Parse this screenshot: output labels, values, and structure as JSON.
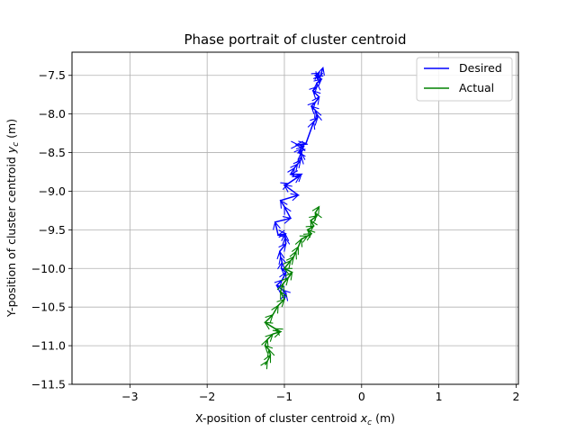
{
  "chart_data": {
    "type": "line",
    "title": "Phase portrait of cluster centroid",
    "xlabel": {
      "prefix": "X-position of cluster centroid ",
      "var": "x",
      "sub": "c",
      "suffix": " (m)"
    },
    "ylabel": {
      "prefix": "Y-position of cluster centroid ",
      "var": "y",
      "sub": "c",
      "suffix": " (m)"
    },
    "xlim": [
      -3.75,
      2.03
    ],
    "ylim": [
      -11.5,
      -7.2
    ],
    "xticks": [
      -3,
      -2,
      -1,
      0,
      1,
      2
    ],
    "xtick_labels": [
      "−3",
      "−2",
      "−1",
      "0",
      "1",
      "2"
    ],
    "yticks": [
      -7.5,
      -8.0,
      -8.5,
      -9.0,
      -9.5,
      -10.0,
      -10.5,
      -11.0,
      -11.5
    ],
    "ytick_labels": [
      "−7.5",
      "−8.0",
      "−8.5",
      "−9.0",
      "−9.5",
      "−10.0",
      "−10.5",
      "−11.0",
      "−11.5"
    ],
    "grid": true,
    "legend_position": "top-right",
    "series": [
      {
        "name": "Desired",
        "color": "#0000ff",
        "x": [
          -1.0,
          -0.98,
          -1.02,
          -1.1,
          -1.03,
          -0.98,
          -1.04,
          -1.03,
          -1.05,
          -1.06,
          -0.98,
          -0.99,
          -0.99,
          -0.98,
          -1.08,
          -1.12,
          -0.92,
          -1.0,
          -1.05,
          -0.82,
          -1.0,
          -0.95,
          -0.8,
          -0.78,
          -0.92,
          -0.87,
          -0.83,
          -0.79,
          -0.78,
          -0.78,
          -0.82,
          -0.78,
          -0.75,
          -0.8,
          -0.85,
          -0.82,
          -0.72,
          -0.62,
          -0.57,
          -0.58,
          -0.6,
          -0.65,
          -0.6,
          -0.55,
          -0.63,
          -0.58,
          -0.58,
          -0.52,
          -0.6,
          -0.55,
          -0.57,
          -0.53,
          -0.5
        ],
        "y": [
          -10.4,
          -10.32,
          -10.28,
          -10.22,
          -10.15,
          -10.05,
          -10.0,
          -9.92,
          -9.85,
          -9.78,
          -9.68,
          -9.6,
          -9.55,
          -9.55,
          -9.57,
          -9.4,
          -9.35,
          -9.2,
          -9.12,
          -9.05,
          -8.92,
          -8.9,
          -8.8,
          -8.78,
          -8.78,
          -8.7,
          -8.65,
          -8.6,
          -8.55,
          -8.5,
          -8.5,
          -8.45,
          -8.42,
          -8.4,
          -8.4,
          -8.4,
          -8.38,
          -8.1,
          -8.05,
          -8.0,
          -7.95,
          -7.9,
          -7.85,
          -7.78,
          -7.7,
          -7.65,
          -7.6,
          -7.55,
          -7.5,
          -7.47,
          -7.55,
          -7.5,
          -7.4
        ]
      },
      {
        "name": "Actual",
        "color": "#008000",
        "x": [
          -1.25,
          -1.22,
          -1.18,
          -1.2,
          -1.25,
          -1.22,
          -1.15,
          -1.05,
          -1.12,
          -1.25,
          -1.15,
          -1.08,
          -1.0,
          -1.05,
          -1.02,
          -0.95,
          -0.9,
          -1.0,
          -0.92,
          -0.88,
          -0.85,
          -0.82,
          -0.78,
          -0.7,
          -0.65,
          -0.7,
          -0.62,
          -0.66,
          -0.58,
          -0.6,
          -0.55
        ],
        "y": [
          -11.25,
          -11.2,
          -11.12,
          -11.05,
          -11.0,
          -10.92,
          -10.85,
          -10.82,
          -10.78,
          -10.7,
          -10.6,
          -10.48,
          -10.4,
          -10.3,
          -10.2,
          -10.12,
          -10.05,
          -10.0,
          -9.9,
          -9.85,
          -9.78,
          -9.72,
          -9.62,
          -9.58,
          -9.55,
          -9.5,
          -9.45,
          -9.38,
          -9.32,
          -9.28,
          -9.2
        ]
      }
    ]
  }
}
